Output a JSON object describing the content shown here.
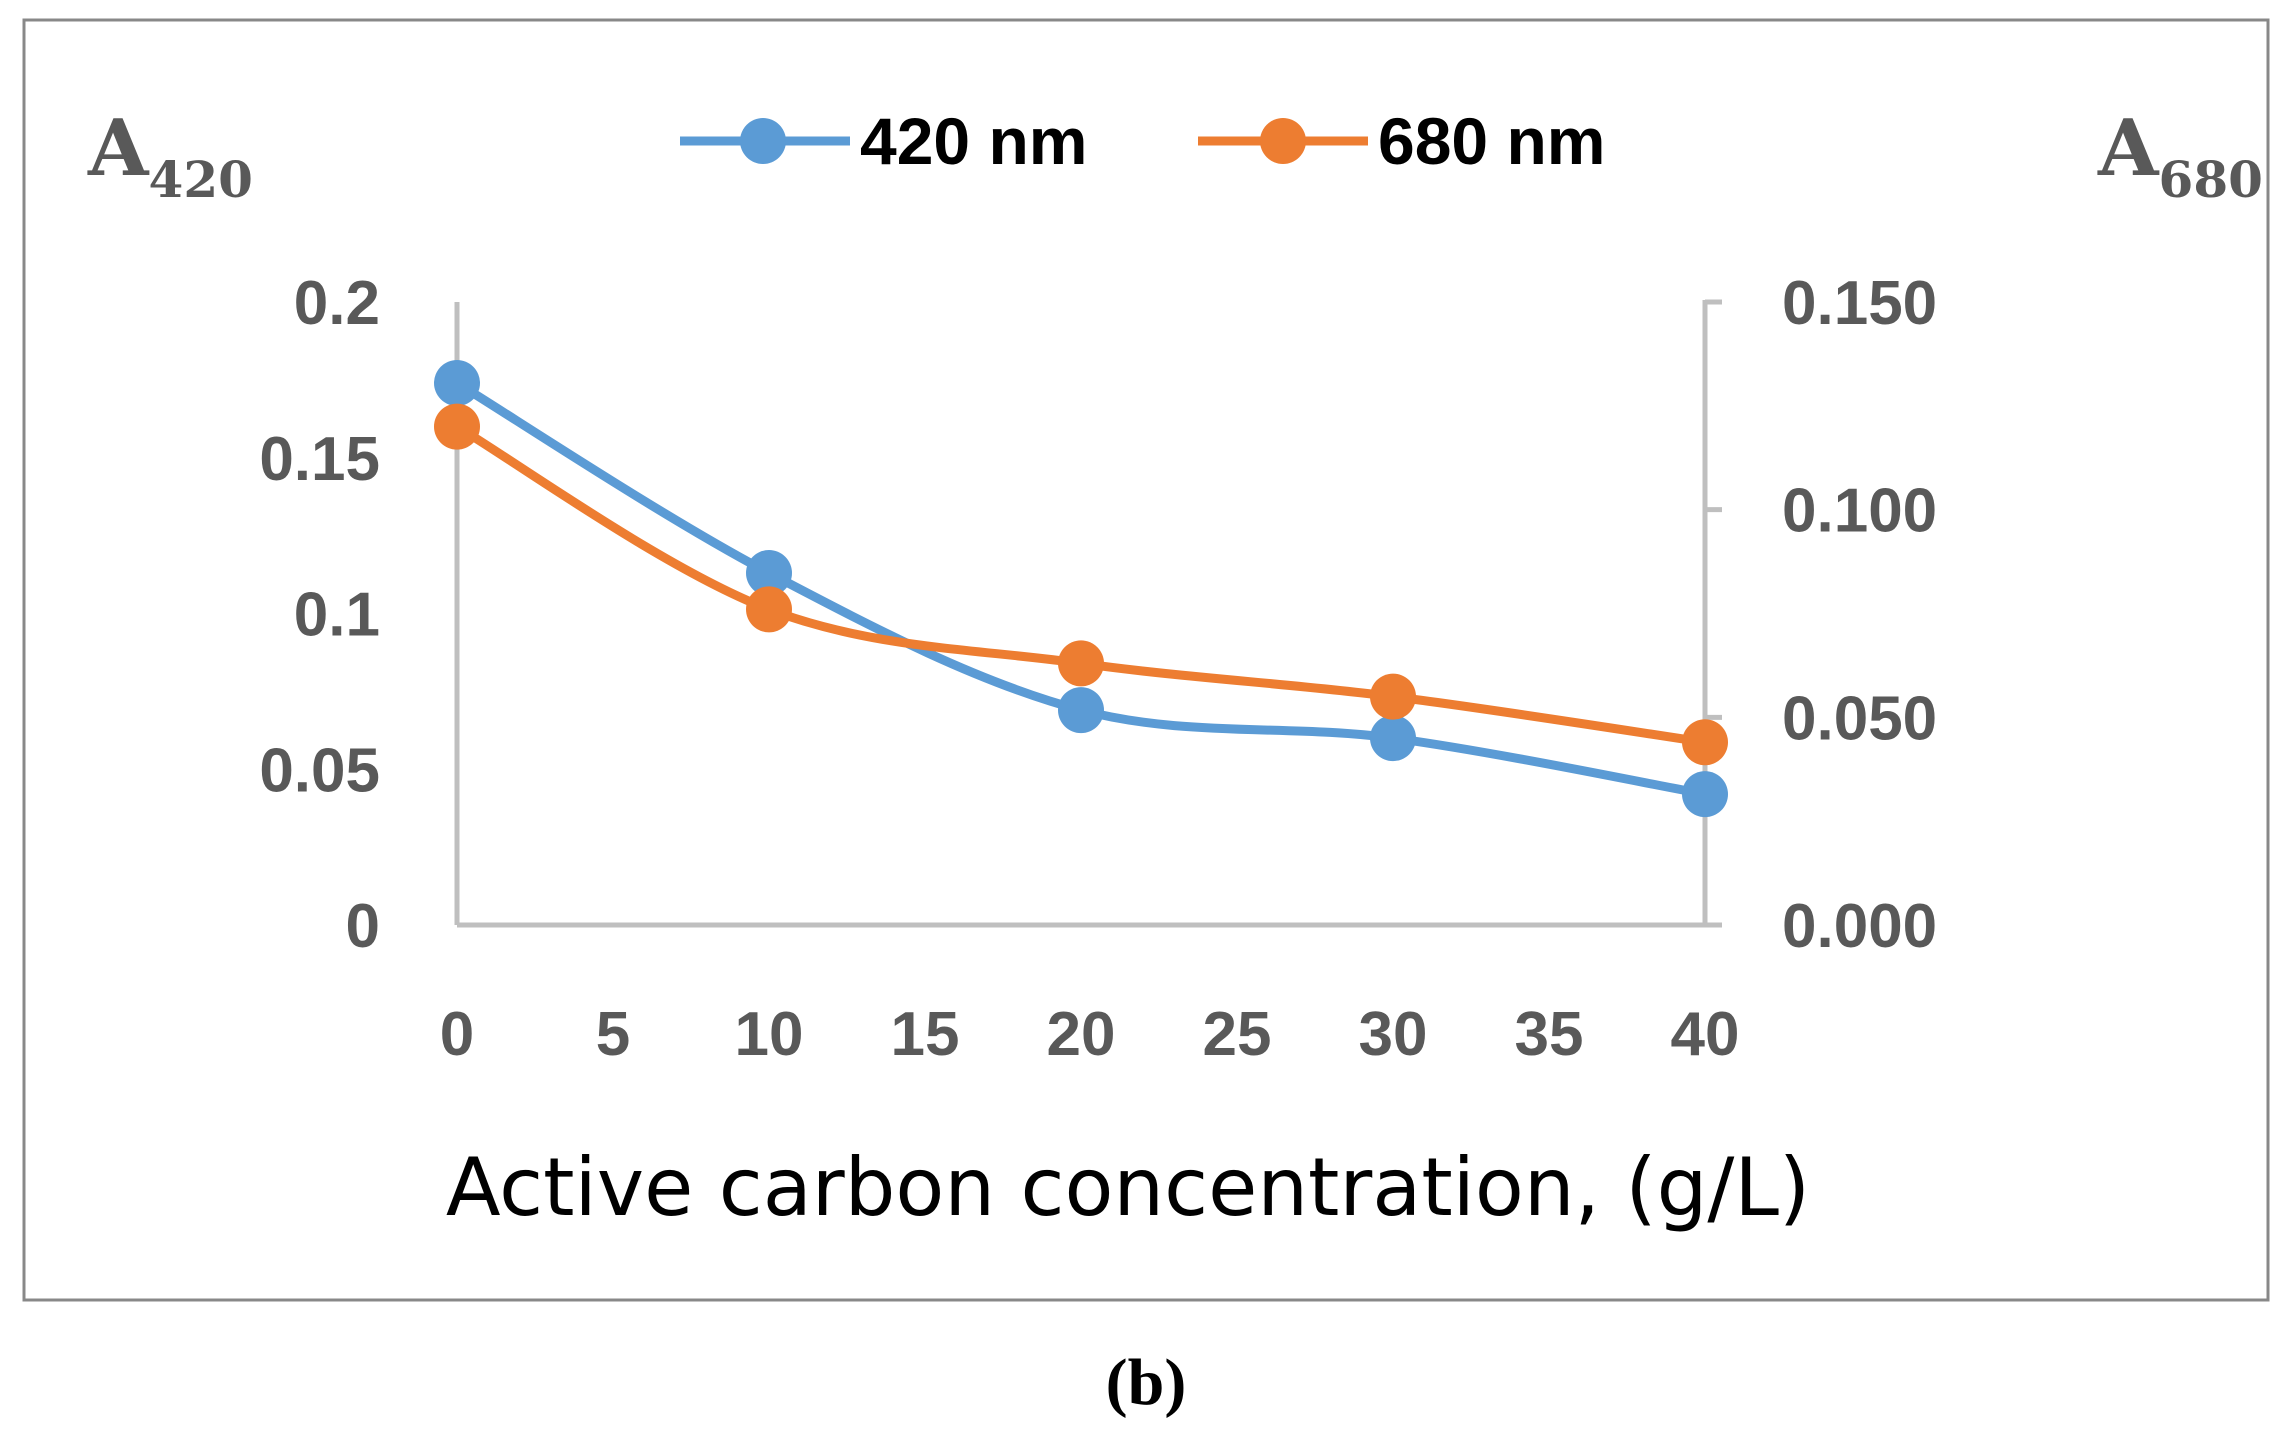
{
  "chart_data": {
    "type": "line",
    "categories": [
      0,
      10,
      20,
      30,
      40
    ],
    "series": [
      {
        "name": "420 nm",
        "axis": "left",
        "color": "#5B9BD5",
        "values": [
          0.174,
          0.113,
          0.069,
          0.06,
          0.042
        ]
      },
      {
        "name": "680 nm",
        "axis": "right",
        "color": "#ED7D31",
        "values": [
          0.12,
          0.076,
          0.063,
          0.055,
          0.044
        ]
      }
    ],
    "xlabel": "Active carbon concentration, (g/L)",
    "xlim": [
      0,
      40
    ],
    "xticks": [
      "0",
      "5",
      "10",
      "15",
      "20",
      "25",
      "30",
      "35",
      "40"
    ],
    "ylabel_left": {
      "main": "A",
      "sub": "420"
    },
    "ylabel_right": {
      "main": "A",
      "sub": "680"
    },
    "ylim_left": [
      0,
      0.2
    ],
    "yticks_left": [
      "0",
      "0.05",
      "0.1",
      "0.15",
      "0.2"
    ],
    "ylim_right": [
      0,
      0.15
    ],
    "yticks_right": [
      "0.000",
      "0.050",
      "0.100",
      "0.150"
    ],
    "legend_position": "top-center",
    "grid": false,
    "axis_color": "#BFBFBF",
    "tick_color": "#595959"
  },
  "panel_label": {
    "open": "(",
    "letter": "b",
    "close": ")"
  }
}
